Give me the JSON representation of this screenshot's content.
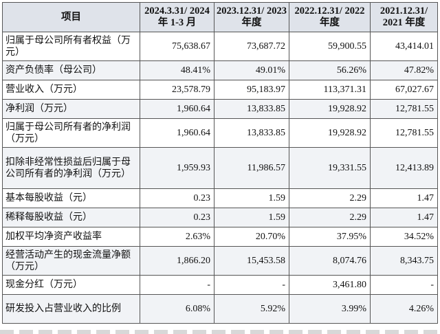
{
  "table": {
    "headers": [
      "项目",
      "2024.3.31/ 2024 年 1-3 月",
      "2023.12.31/ 2023 年度",
      "2022.12.31/ 2022 年度",
      "2021.12.31/ 2021 年度"
    ],
    "rows": [
      {
        "label": "归属于母公司所有者权益（万元）",
        "values": [
          "75,638.67",
          "73,687.72",
          "59,900.55",
          "43,414.01"
        ]
      },
      {
        "label": "资产负债率（母公司）",
        "values": [
          "48.41%",
          "49.01%",
          "56.26%",
          "47.82%"
        ]
      },
      {
        "label": "营业收入（万元）",
        "values": [
          "23,578.79",
          "95,183.97",
          "113,371.31",
          "67,027.67"
        ]
      },
      {
        "label": "净利润（万元）",
        "values": [
          "1,960.64",
          "13,833.85",
          "19,928.92",
          "12,781.55"
        ]
      },
      {
        "label": "归属于母公司所有者的净利润（万元）",
        "values": [
          "1,960.64",
          "13,833.85",
          "19,928.92",
          "12,781.55"
        ]
      },
      {
        "label": "扣除非经常性损益后归属于母公司所有者的净利润（万元）",
        "values": [
          "1,959.93",
          "11,986.57",
          "19,331.55",
          "12,413.89"
        ]
      },
      {
        "label": "基本每股收益（元）",
        "values": [
          "0.23",
          "1.59",
          "2.29",
          "1.47"
        ]
      },
      {
        "label": "稀释每股收益（元）",
        "values": [
          "0.23",
          "1.59",
          "2.29",
          "1.47"
        ]
      },
      {
        "label": "加权平均净资产收益率",
        "values": [
          "2.63%",
          "20.70%",
          "37.95%",
          "34.52%"
        ]
      },
      {
        "label": "经营活动产生的现金流量净额（万元）",
        "values": [
          "1,866.20",
          "15,453.58",
          "8,074.76",
          "8,343.75"
        ]
      },
      {
        "label": "现金分红（万元）",
        "values": [
          "-",
          "-",
          "3,461.80",
          "-"
        ]
      },
      {
        "label": "研发投入占营业收入的比例",
        "values": [
          "6.08%",
          "5.92%",
          "3.99%",
          "4.26%"
        ]
      }
    ]
  }
}
